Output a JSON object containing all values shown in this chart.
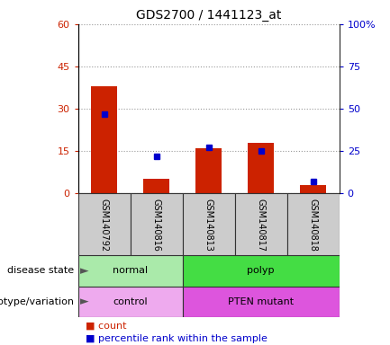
{
  "title": "GDS2700 / 1441123_at",
  "samples": [
    "GSM140792",
    "GSM140816",
    "GSM140813",
    "GSM140817",
    "GSM140818"
  ],
  "count_values": [
    38,
    5,
    16,
    18,
    3
  ],
  "percentile_values": [
    47,
    22,
    27,
    25,
    7
  ],
  "left_ylim": [
    0,
    60
  ],
  "right_ylim": [
    0,
    100
  ],
  "left_yticks": [
    0,
    15,
    30,
    45,
    60
  ],
  "right_yticks": [
    0,
    25,
    50,
    75,
    100
  ],
  "right_yticklabels": [
    "0",
    "25",
    "50",
    "75",
    "100%"
  ],
  "bar_color": "#cc2200",
  "percentile_color": "#0000cc",
  "disease_state": [
    {
      "label": "normal",
      "span": [
        0,
        2
      ],
      "color": "#aaeaaa"
    },
    {
      "label": "polyp",
      "span": [
        2,
        5
      ],
      "color": "#44dd44"
    }
  ],
  "genotype": [
    {
      "label": "control",
      "span": [
        0,
        2
      ],
      "color": "#eeaaee"
    },
    {
      "label": "PTEN mutant",
      "span": [
        2,
        5
      ],
      "color": "#dd55dd"
    }
  ],
  "label_disease": "disease state",
  "label_genotype": "genotype/variation",
  "legend_count": "count",
  "legend_percentile": "percentile rank within the sample",
  "bar_width": 0.5,
  "tick_label_color_left": "#cc2200",
  "tick_label_color_right": "#0000cc",
  "sample_bg": "#cccccc",
  "spine_color": "#333333"
}
